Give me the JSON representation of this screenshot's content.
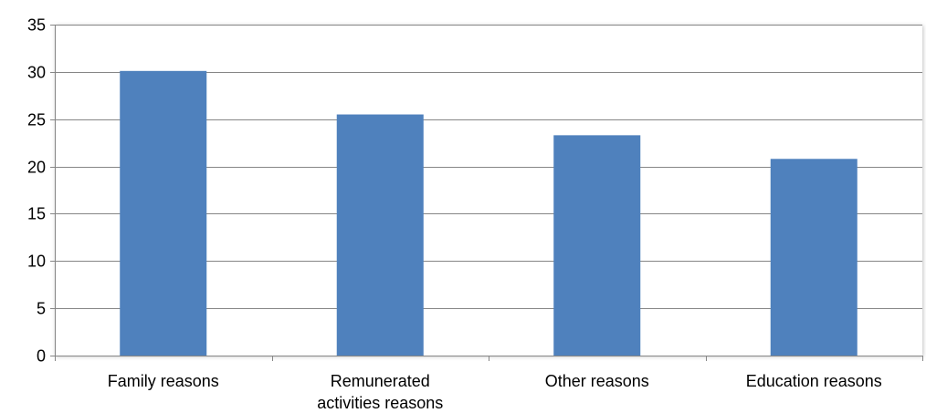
{
  "chart_data": {
    "type": "bar",
    "title": "",
    "xlabel": "",
    "ylabel": "",
    "categories": [
      [
        "Family reasons"
      ],
      [
        "Remunerated",
        "activities reasons"
      ],
      [
        "Other reasons"
      ],
      [
        "Education reasons"
      ]
    ],
    "values": [
      30.1,
      25.5,
      23.3,
      20.8
    ],
    "ylim": [
      0,
      35
    ],
    "yticks": [
      "0",
      "5",
      "10",
      "15",
      "20",
      "25",
      "30",
      "35"
    ],
    "grid": true,
    "legend": "none",
    "colors": {
      "bar": "#4F81BD",
      "grid": "#868686",
      "axis": "#868686",
      "plot_border": "#D9D9D9"
    }
  }
}
